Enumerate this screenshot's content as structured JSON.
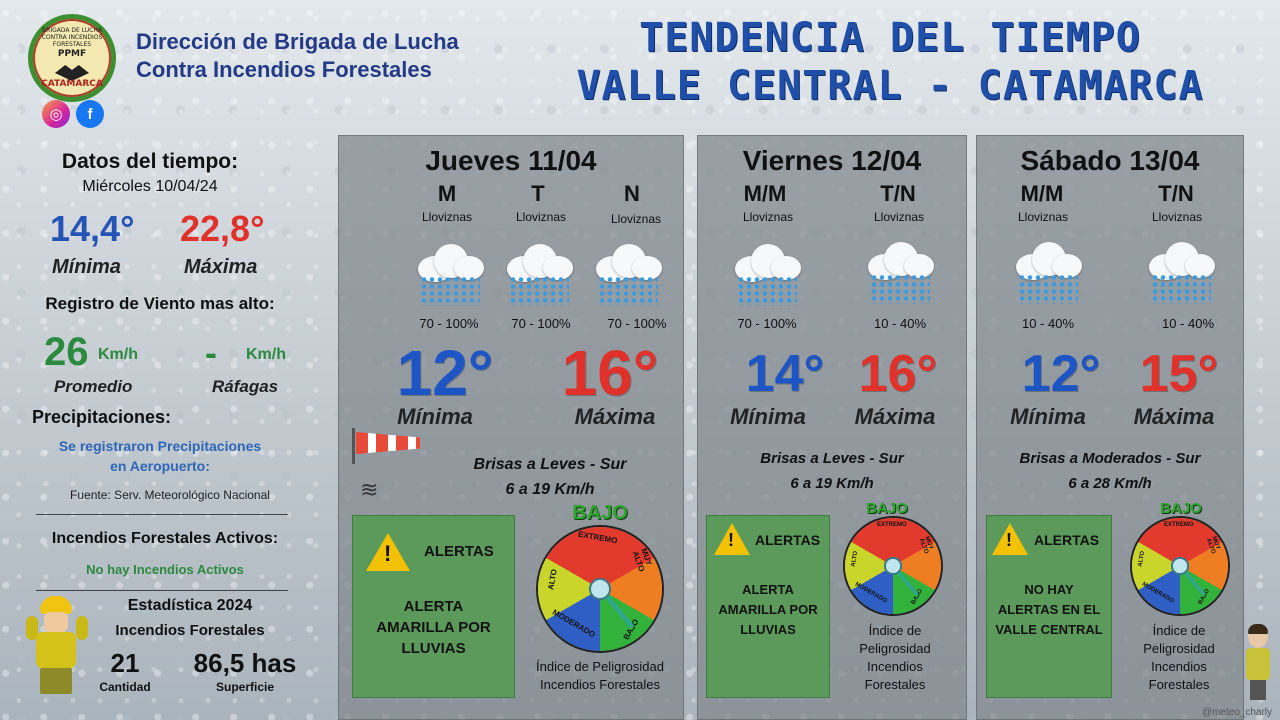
{
  "org": {
    "line1": "Dirección de Brigada de Lucha",
    "line2": "Contra Incendios Forestales",
    "logo_ring": "BRIGADA DE LUCHA CONTRA INCENDIOS FORESTALES",
    "logo_center": "PPMF",
    "logo_bottom": "CATAMARCA"
  },
  "social": {
    "instagram": "instagram-icon",
    "facebook": "f"
  },
  "title": {
    "line1": "TENDENCIA DEL TIEMPO",
    "line2": "VALLE CENTRAL - CATAMARCA"
  },
  "current": {
    "heading": "Datos del tiempo:",
    "date": "Miércoles 10/04/24",
    "min": "14,4°",
    "max": "22,8°",
    "min_label": "Mínima",
    "max_label": "Máxima",
    "wind_heading": "Registro de Viento mas alto:",
    "wind_avg": "26",
    "wind_unit": "Km/h",
    "wind_gust": "-",
    "wind_gust_unit": "Km/h",
    "wind_avg_label": "Promedio",
    "wind_gust_label": "Ráfagas",
    "precip_heading": "Precipitaciones:",
    "precip_text_1": "Se registraron Precipitaciones",
    "precip_text_2": "en Aeropuerto:",
    "source": "Fuente: Serv. Meteorológico Nacional",
    "fires_heading": "Incendios Forestales Activos:",
    "fires_text": "No hay Incendios Activos",
    "stats_heading": "Estadística 2024",
    "stats_sub": "Incendios Forestales",
    "count": "21",
    "count_label": "Cantidad",
    "area": "86,5 has",
    "area_label": "Superficie"
  },
  "days": [
    {
      "name": "Jueves 11/04",
      "slots": [
        {
          "label": "M",
          "cond": "Lloviznas",
          "pct": "70 - 100%"
        },
        {
          "label": "T",
          "cond": "Lloviznas",
          "pct": "70 - 100%"
        },
        {
          "label": "N",
          "cond": "Lloviznas",
          "pct": "70 - 100%"
        }
      ],
      "min": "12°",
      "max": "16°",
      "min_label": "Mínima",
      "max_label": "Máxima",
      "wind_1": "Brisas a Leves - Sur",
      "wind_2": "6 a 19 Km/h",
      "alert_title": "ALERTAS",
      "alert_1": "ALERTA",
      "alert_2": "AMARILLA POR",
      "alert_3": "LLUVIAS",
      "risk": "BAJO",
      "index_1": "Índice de Peligrosidad",
      "index_2": "Incendios Forestales"
    },
    {
      "name": "Viernes 12/04",
      "slots": [
        {
          "label": "M/M",
          "cond": "Lloviznas",
          "pct": "70 - 100%"
        },
        {
          "label": "T/N",
          "cond": "Lloviznas",
          "pct": "10 - 40%"
        }
      ],
      "min": "14°",
      "max": "16°",
      "min_label": "Mínima",
      "max_label": "Máxima",
      "wind_1": "Brisas a Leves - Sur",
      "wind_2": "6 a 19 Km/h",
      "alert_title": "ALERTAS",
      "alert_1": "ALERTA",
      "alert_2": "AMARILLA POR",
      "alert_3": "LLUVIAS",
      "risk": "BAJO",
      "index_1": "Índice de",
      "index_2": "Peligrosidad",
      "index_3": "Incendios",
      "index_4": "Forestales"
    },
    {
      "name": "Sábado 13/04",
      "slots": [
        {
          "label": "M/M",
          "cond": "Lloviznas",
          "pct": "10 - 40%"
        },
        {
          "label": "T/N",
          "cond": "Lloviznas",
          "pct": "10 - 40%"
        }
      ],
      "min": "12°",
      "max": "15°",
      "min_label": "Mínima",
      "max_label": "Máxima",
      "wind_1": "Brisas a Moderados - Sur",
      "wind_2": "6 a 28 Km/h",
      "alert_title": "ALERTAS",
      "alert_1": "NO HAY",
      "alert_2": "ALERTAS EN EL",
      "alert_3": "VALLE CENTRAL",
      "risk": "BAJO",
      "index_1": "Índice de",
      "index_2": "Peligrosidad",
      "index_3": "Incendios",
      "index_4": "Forestales"
    }
  ],
  "gauge_labels": {
    "extremo": "EXTREMO",
    "muy_alto": "MUY ALTO",
    "bajo": "BAJO",
    "moderado": "MODERADO",
    "alto": "ALTO"
  },
  "credit": "@meteo_charly"
}
